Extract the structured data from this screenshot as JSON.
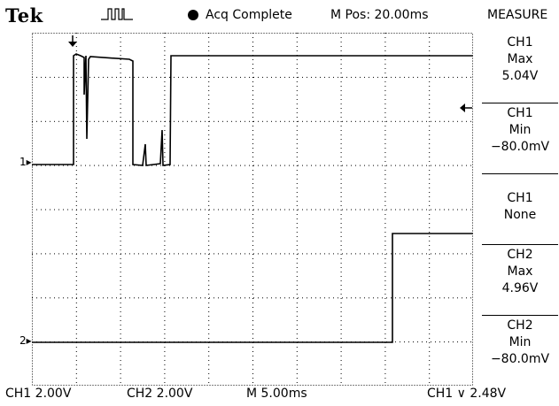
{
  "header": {
    "brand": "Tek",
    "trigger_icon": "pulse-train-icon",
    "acq_status": "Acq Complete",
    "m_pos": "M Pos: 20.00ms",
    "measure_title": "MEASURE"
  },
  "measurements": [
    {
      "line1": "CH1",
      "line2": "Max",
      "line3": "5.04V"
    },
    {
      "line1": "CH1",
      "line2": "Min",
      "line3": "−80.0mV"
    },
    {
      "line1": "CH1",
      "line2": "None",
      "line3": ""
    },
    {
      "line1": "CH2",
      "line2": "Max",
      "line3": "4.96V"
    },
    {
      "line1": "CH2",
      "line2": "Min",
      "line3": "−80.0mV"
    }
  ],
  "footer": {
    "ch1_scale": "CH1  2.00V",
    "ch2_scale": "CH2  2.00V",
    "timebase": "M 5.00ms",
    "trigger": "CH1 ∨ 2.48V"
  },
  "markers": {
    "ch1_ground": "1",
    "ch2_ground": "2"
  },
  "colors": {
    "background": "#ffffff",
    "trace": "#000000",
    "grid": "#000000"
  }
}
